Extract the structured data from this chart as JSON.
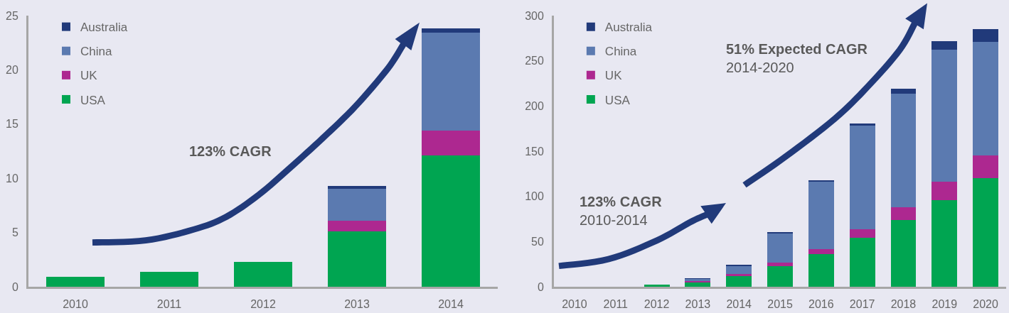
{
  "chart_data": [
    {
      "type": "bar",
      "stacked": true,
      "categories": [
        "2010",
        "2011",
        "2012",
        "2013",
        "2014"
      ],
      "series": [
        {
          "name": "USA",
          "color": "#00a551",
          "values": [
            0.9,
            1.4,
            2.3,
            5.1,
            12.1
          ]
        },
        {
          "name": "UK",
          "color": "#ad2890",
          "values": [
            null,
            null,
            null,
            1.0,
            2.3
          ]
        },
        {
          "name": "China",
          "color": "#5b7ab0",
          "values": [
            null,
            null,
            null,
            2.9,
            9.0
          ]
        },
        {
          "name": "Australia",
          "color": "#213a7a",
          "values": [
            null,
            null,
            null,
            0.3,
            0.4
          ]
        }
      ],
      "ylim": [
        0,
        25
      ],
      "yticks": [
        0,
        5,
        10,
        15,
        20,
        25
      ],
      "grid": false,
      "legend": "top left",
      "annotations": [
        "123% CAGR"
      ]
    },
    {
      "type": "bar",
      "stacked": true,
      "categories": [
        "2010",
        "2011",
        "2012",
        "2013",
        "2014",
        "2015",
        "2016",
        "2017",
        "2018",
        "2019",
        "2020"
      ],
      "series": [
        {
          "name": "USA",
          "color": "#00a551",
          "values": [
            null,
            null,
            2.3,
            5.1,
            12.1,
            23,
            36,
            54,
            74,
            96,
            120
          ]
        },
        {
          "name": "UK",
          "color": "#ad2890",
          "values": [
            null,
            null,
            null,
            1.0,
            2.3,
            4,
            6,
            10,
            14,
            20,
            25
          ]
        },
        {
          "name": "China",
          "color": "#5b7ab0",
          "values": [
            null,
            null,
            null,
            2.9,
            9.0,
            32,
            74,
            114,
            126,
            146,
            126
          ]
        },
        {
          "name": "Australia",
          "color": "#213a7a",
          "values": [
            null,
            null,
            null,
            0.3,
            0.4,
            1.6,
            1.6,
            3,
            5,
            10,
            14
          ]
        }
      ],
      "ylim": [
        0,
        300
      ],
      "yticks": [
        0,
        50,
        100,
        150,
        200,
        250,
        300
      ],
      "grid": false,
      "legend": "top left",
      "annotations": [
        "123% CAGR\n2010-2014",
        "51% Expected CAGR\n2014-2020"
      ]
    }
  ]
}
